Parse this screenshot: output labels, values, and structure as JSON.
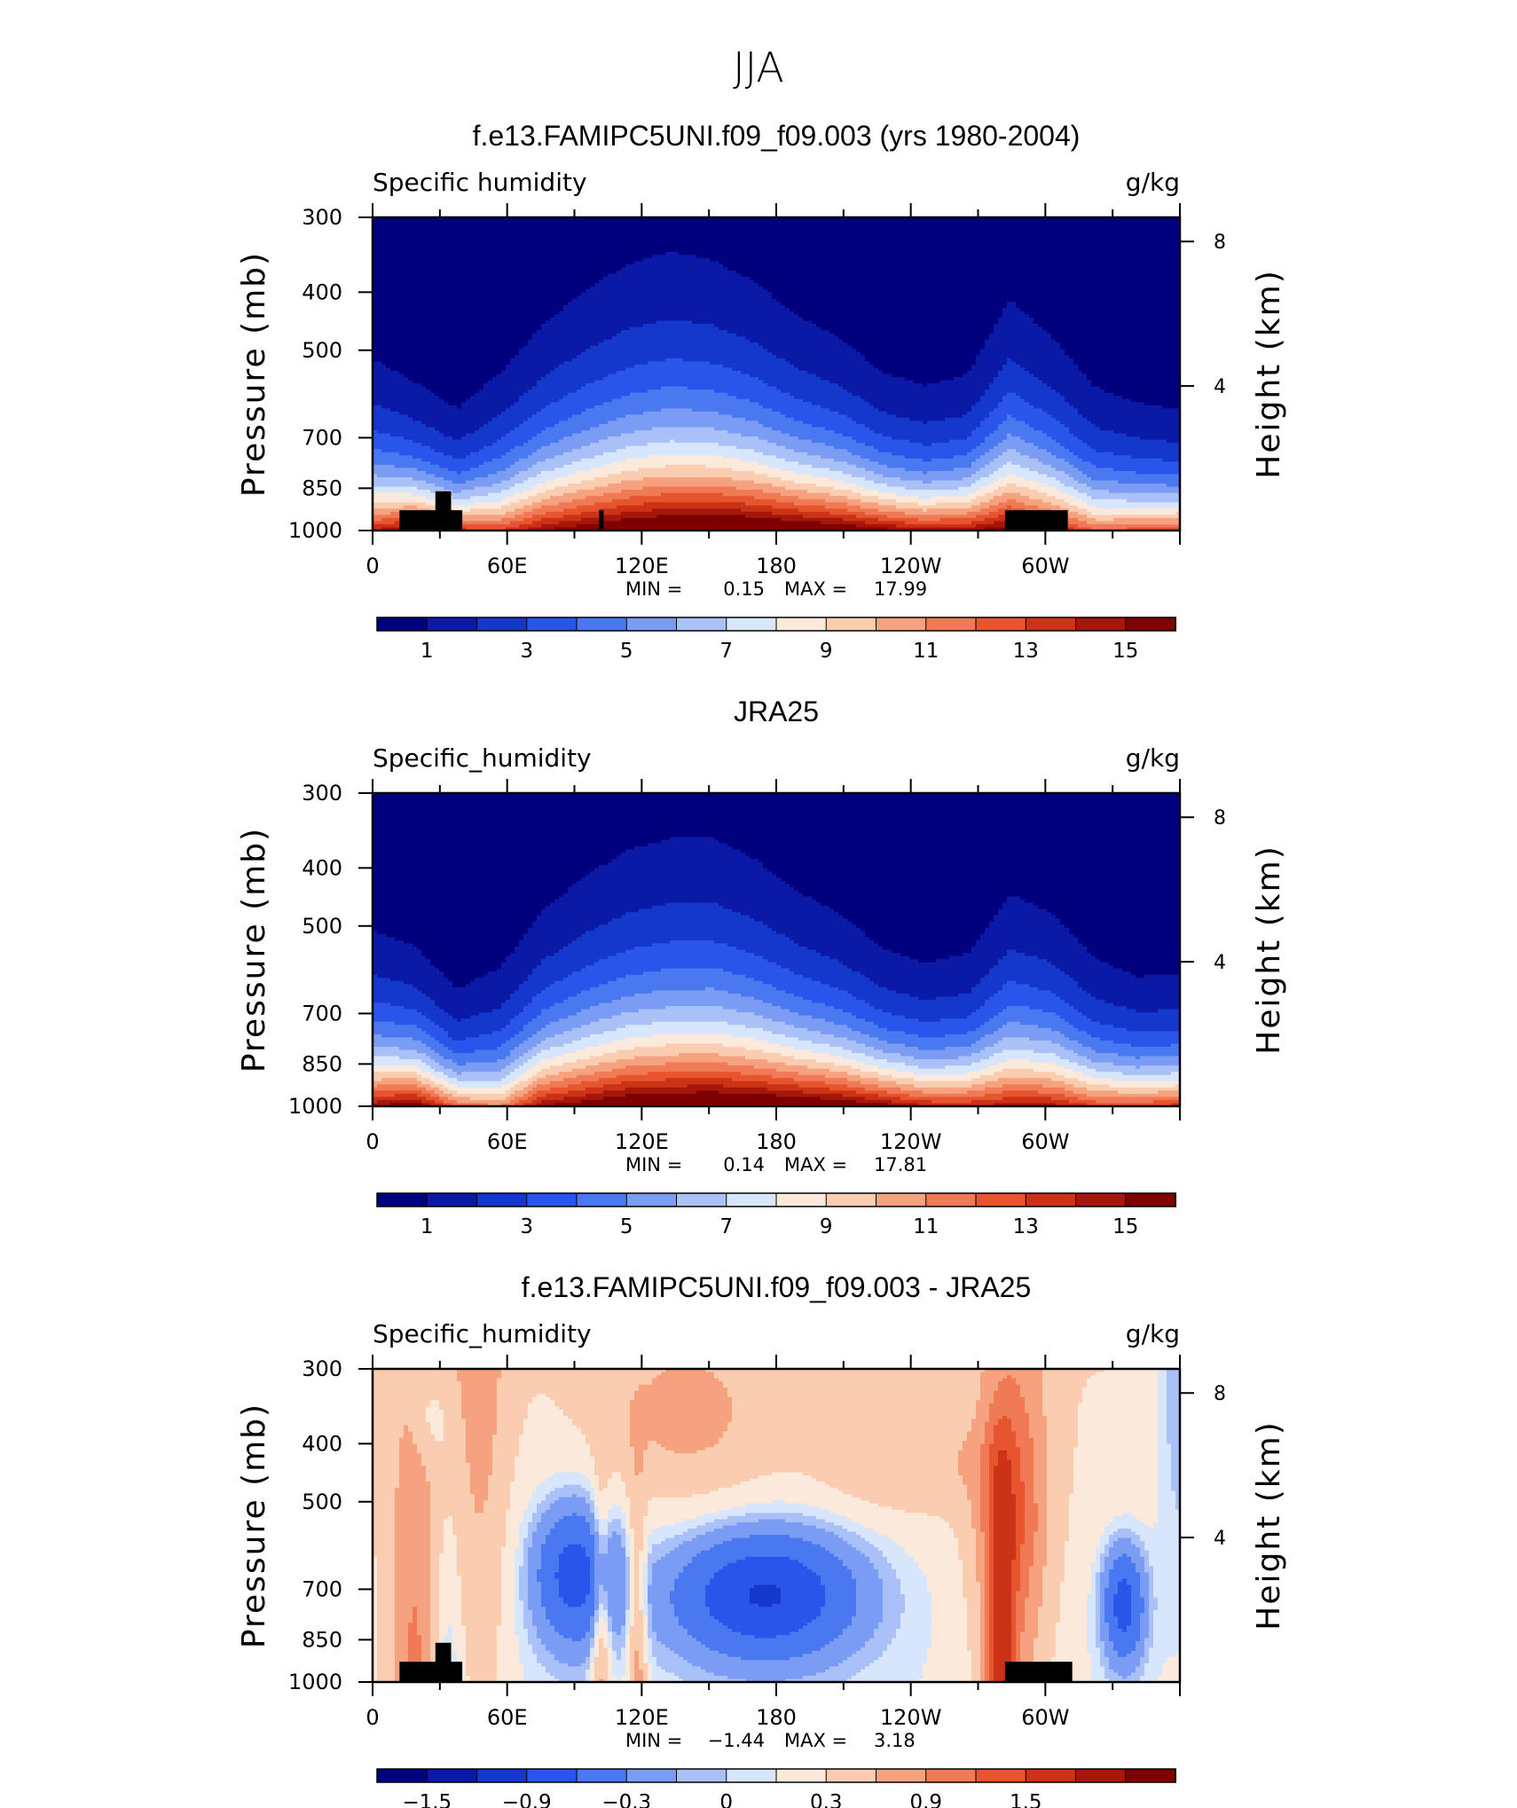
{
  "figure": {
    "title": "JJA"
  },
  "colors": {
    "sequential": [
      "#00007f",
      "#0a1aa6",
      "#1438cc",
      "#2a55ea",
      "#4a78f0",
      "#7b9cf3",
      "#a9c1f7",
      "#d8e6fb",
      "#fbe9dc",
      "#fbcdb0",
      "#f6a27f",
      "#f07a55",
      "#e7552f",
      "#cc3316",
      "#a5170a",
      "#7f0000"
    ],
    "diverging": [
      "#00007f",
      "#0a1aa6",
      "#1438cc",
      "#2a55ea",
      "#4a78f0",
      "#7b9cf3",
      "#a9c1f7",
      "#d8e6fb",
      "#fbe9dc",
      "#fbcdb0",
      "#f6a27f",
      "#f07a55",
      "#e7552f",
      "#cc3316",
      "#a5170a",
      "#7f0000"
    ],
    "topography": "#000000"
  },
  "panels": [
    {
      "title": "f.e13.FAMIPC5UNI.f09_f09.003 (yrs 1980-2004)",
      "left_string": "Specific humidity",
      "right_string": "g/kg",
      "y_label": "Pressure (mb)",
      "y2_label": "Height (km)",
      "stats": {
        "min_label": "MIN =",
        "min": "0.15",
        "max_label": "MAX =",
        "max": "17.99"
      },
      "colorbar_labels": [
        "1",
        "3",
        "5",
        "7",
        "9",
        "11",
        "13",
        "15"
      ]
    },
    {
      "title": "JRA25",
      "left_string": "Specific_humidity",
      "right_string": "g/kg",
      "y_label": "Pressure (mb)",
      "y2_label": "Height (km)",
      "stats": {
        "min_label": "MIN =",
        "min": "0.14",
        "max_label": "MAX =",
        "max": "17.81"
      },
      "colorbar_labels": [
        "1",
        "3",
        "5",
        "7",
        "9",
        "11",
        "13",
        "15"
      ]
    },
    {
      "title": "f.e13.FAMIPC5UNI.f09_f09.003 - JRA25",
      "left_string": "Specific_humidity",
      "right_string": "g/kg",
      "y_label": "Pressure (mb)",
      "y2_label": "Height (km)",
      "stats": {
        "min_label": "MIN =",
        "min": "−1.44",
        "max_label": "MAX =",
        "max": "3.18"
      },
      "colorbar_labels": [
        "−1.5",
        "−0.9",
        "−0.3",
        "0",
        "0.3",
        "0.9",
        "1.5"
      ]
    }
  ],
  "chart_data": [
    {
      "type": "heatmap",
      "title": "f.e13.FAMIPC5UNI.f09_f09.003 (yrs 1980-2004)",
      "variable": "Specific humidity",
      "units": "g/kg",
      "x_ticks": [
        "0",
        "60E",
        "120E",
        "180",
        "120W",
        "60W"
      ],
      "x_tick_lon": [
        0,
        60,
        120,
        180,
        240,
        300
      ],
      "xlim": [
        0,
        360
      ],
      "y_ticks": [
        "300",
        "400",
        "500",
        "700",
        "850",
        "1000"
      ],
      "y_tick_values": [
        300,
        400,
        500,
        700,
        850,
        1000
      ],
      "ylim": [
        1000,
        300
      ],
      "y_scale": "log",
      "y2_ticks": [
        "8",
        "4"
      ],
      "levels": [
        1,
        2,
        3,
        4,
        5,
        6,
        7,
        8,
        9,
        10,
        11,
        12,
        13,
        14,
        15
      ],
      "min": 0.15,
      "max": 17.99,
      "q_surface": [
        14,
        15.5,
        13.5,
        13,
        15,
        16,
        17,
        17.5,
        17.8,
        17.5,
        17,
        16.5,
        15.5,
        14.5,
        14.8,
        16,
        14.5,
        12,
        12.5,
        13
      ],
      "q_profile_scale_height_km": [
        1.8,
        1.5,
        1.3,
        1.7,
        2.1,
        2.4,
        2.6,
        2.7,
        2.6,
        2.4,
        2.1,
        1.9,
        1.6,
        1.5,
        1.6,
        2.3,
        2.0,
        1.6,
        1.4,
        1.3
      ],
      "topography": [
        {
          "lon_start": 12,
          "lon_end": 40,
          "p_top": 925
        },
        {
          "lon_start": 28,
          "lon_end": 35,
          "p_top": 860
        },
        {
          "lon_start": 101,
          "lon_end": 103,
          "p_top": 925
        },
        {
          "lon_start": 282,
          "lon_end": 310,
          "p_top": 925
        }
      ]
    },
    {
      "type": "heatmap",
      "title": "JRA25",
      "variable": "Specific_humidity",
      "units": "g/kg",
      "x_ticks": [
        "0",
        "60E",
        "120E",
        "180",
        "120W",
        "60W"
      ],
      "x_tick_lon": [
        0,
        60,
        120,
        180,
        240,
        300
      ],
      "xlim": [
        0,
        360
      ],
      "y_ticks": [
        "300",
        "400",
        "500",
        "700",
        "850",
        "1000"
      ],
      "y_tick_values": [
        300,
        400,
        500,
        700,
        850,
        1000
      ],
      "ylim": [
        1000,
        300
      ],
      "y_scale": "log",
      "y2_ticks": [
        "8",
        "4"
      ],
      "levels": [
        1,
        2,
        3,
        4,
        5,
        6,
        7,
        8,
        9,
        10,
        11,
        12,
        13,
        14,
        15
      ],
      "min": 0.14,
      "max": 17.81,
      "q_surface": [
        15,
        16,
        12,
        11,
        15,
        16,
        17,
        17.3,
        17.5,
        17.3,
        17,
        16.5,
        15.5,
        14.2,
        14,
        14.5,
        14.5,
        13,
        13,
        13.5
      ],
      "q_profile_scale_height_km": [
        1.8,
        1.6,
        1.3,
        1.6,
        2.0,
        2.3,
        2.5,
        2.6,
        2.6,
        2.4,
        2.1,
        1.9,
        1.6,
        1.5,
        1.6,
        2.2,
        2.0,
        1.6,
        1.4,
        1.4
      ],
      "topography": []
    },
    {
      "type": "heatmap",
      "title": "f.e13.FAMIPC5UNI.f09_f09.003 - JRA25",
      "variable": "Specific_humidity",
      "units": "g/kg",
      "x_ticks": [
        "0",
        "60E",
        "120E",
        "180",
        "120W",
        "60W"
      ],
      "x_tick_lon": [
        0,
        60,
        120,
        180,
        240,
        300
      ],
      "xlim": [
        0,
        360
      ],
      "y_ticks": [
        "300",
        "400",
        "500",
        "700",
        "850",
        "1000"
      ],
      "y_tick_values": [
        300,
        400,
        500,
        700,
        850,
        1000
      ],
      "ylim": [
        1000,
        300
      ],
      "y_scale": "log",
      "y2_ticks": [
        "8",
        "4"
      ],
      "levels": [
        -1.5,
        -1.2,
        -0.9,
        -0.6,
        -0.3,
        -0.1,
        0,
        0.1,
        0.3,
        0.6,
        0.9,
        1.2,
        1.5
      ],
      "min": -1.44,
      "max": 3.18,
      "topography": [
        {
          "lon_start": 12,
          "lon_end": 40,
          "p_top": 925
        },
        {
          "lon_start": 28,
          "lon_end": 35,
          "p_top": 860
        },
        {
          "lon_start": 282,
          "lon_end": 312,
          "p_top": 925
        }
      ]
    }
  ]
}
